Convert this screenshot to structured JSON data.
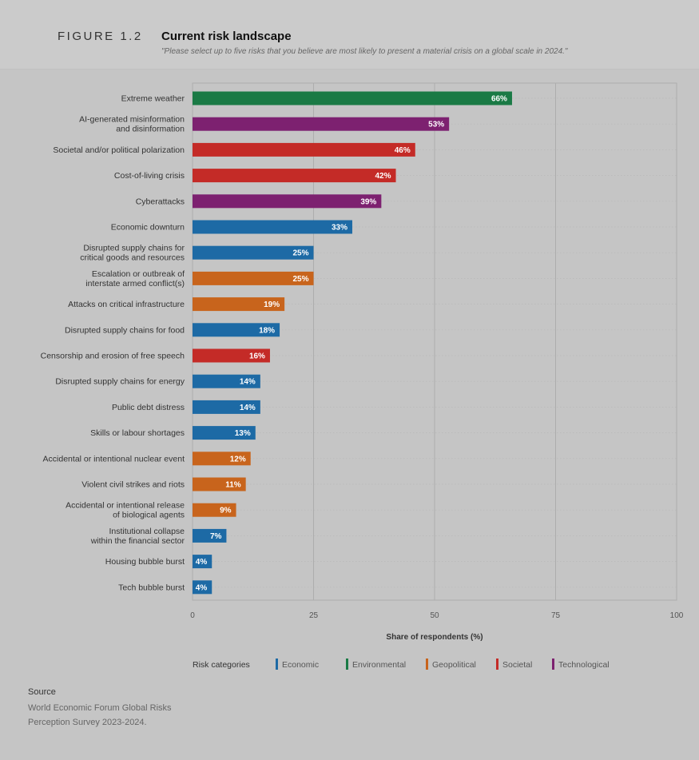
{
  "figure": {
    "label": "FIGURE 1.2",
    "title": "Current risk landscape",
    "subtitle": "\"Please select up to five risks that you believe are most likely to present a material crisis on a global scale in 2024.\""
  },
  "colors": {
    "Economic": "#1d6aa5",
    "Environmental": "#1a7a45",
    "Geopolitical": "#c8641c",
    "Societal": "#c42b27",
    "Technological": "#7d2170"
  },
  "chart_data": {
    "type": "bar",
    "orientation": "horizontal",
    "title": "Current risk landscape",
    "xlabel": "Share of respondents (%)",
    "xlim": [
      0,
      100
    ],
    "xticks": [
      0,
      25,
      50,
      75,
      100
    ],
    "grid": true,
    "legend_title": "Risk categories",
    "legend_position": "bottom",
    "legend": [
      "Economic",
      "Environmental",
      "Geopolitical",
      "Societal",
      "Technological"
    ],
    "value_suffix": "%",
    "bars": [
      {
        "label": [
          "Extreme weather"
        ],
        "value": 66,
        "category": "Environmental"
      },
      {
        "label": [
          "AI-generated misinformation",
          "and disinformation"
        ],
        "value": 53,
        "category": "Technological"
      },
      {
        "label": [
          "Societal and/or political polarization"
        ],
        "value": 46,
        "category": "Societal"
      },
      {
        "label": [
          "Cost-of-living crisis"
        ],
        "value": 42,
        "category": "Societal"
      },
      {
        "label": [
          "Cyberattacks"
        ],
        "value": 39,
        "category": "Technological"
      },
      {
        "label": [
          "Economic downturn"
        ],
        "value": 33,
        "category": "Economic"
      },
      {
        "label": [
          "Disrupted supply chains for",
          "critical goods and resources"
        ],
        "value": 25,
        "category": "Economic"
      },
      {
        "label": [
          "Escalation or outbreak of",
          "interstate armed conflict(s)"
        ],
        "value": 25,
        "category": "Geopolitical"
      },
      {
        "label": [
          "Attacks on critical infrastructure"
        ],
        "value": 19,
        "category": "Geopolitical"
      },
      {
        "label": [
          "Disrupted supply chains for food"
        ],
        "value": 18,
        "category": "Economic"
      },
      {
        "label": [
          "Censorship and erosion of free speech"
        ],
        "value": 16,
        "category": "Societal"
      },
      {
        "label": [
          "Disrupted supply chains for energy"
        ],
        "value": 14,
        "category": "Economic"
      },
      {
        "label": [
          "Public debt distress"
        ],
        "value": 14,
        "category": "Economic"
      },
      {
        "label": [
          "Skills or labour shortages"
        ],
        "value": 13,
        "category": "Economic"
      },
      {
        "label": [
          "Accidental or intentional nuclear event"
        ],
        "value": 12,
        "category": "Geopolitical"
      },
      {
        "label": [
          "Violent civil strikes and riots"
        ],
        "value": 11,
        "category": "Geopolitical"
      },
      {
        "label": [
          "Accidental or intentional release",
          "of biological agents"
        ],
        "value": 9,
        "category": "Geopolitical"
      },
      {
        "label": [
          "Institutional collapse",
          "within the financial sector"
        ],
        "value": 7,
        "category": "Economic"
      },
      {
        "label": [
          "Housing bubble burst"
        ],
        "value": 4,
        "category": "Economic"
      },
      {
        "label": [
          "Tech bubble burst"
        ],
        "value": 4,
        "category": "Economic"
      }
    ]
  },
  "source": {
    "title": "Source",
    "text": "World Economic Forum Global Risks Perception Survey 2023-2024."
  }
}
